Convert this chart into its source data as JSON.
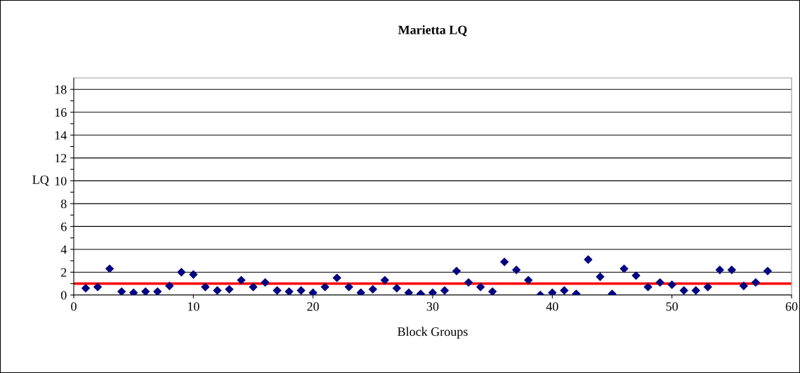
{
  "chart_data": {
    "type": "scatter",
    "title": "Marietta LQ",
    "xlabel": "Block Groups",
    "ylabel": "LQ",
    "x": [
      1,
      2,
      3,
      4,
      5,
      6,
      7,
      8,
      9,
      10,
      11,
      12,
      13,
      14,
      15,
      16,
      17,
      18,
      19,
      20,
      21,
      22,
      23,
      24,
      25,
      26,
      27,
      28,
      29,
      30,
      31,
      32,
      33,
      34,
      35,
      36,
      37,
      38,
      39,
      40,
      41,
      42,
      43,
      44,
      45,
      46,
      47,
      48,
      49,
      50,
      51,
      52,
      53,
      54,
      55,
      56,
      57,
      58
    ],
    "series": [
      {
        "color": "#000080",
        "values": [
          0.6,
          0.7,
          2.3,
          0.3,
          0.2,
          0.3,
          0.3,
          0.8,
          2.0,
          1.8,
          0.7,
          0.4,
          0.5,
          1.3,
          0.7,
          1.1,
          0.4,
          0.3,
          0.4,
          0.2,
          0.7,
          1.5,
          0.7,
          0.2,
          0.5,
          1.3,
          0.6,
          0.2,
          0.1,
          0.2,
          0.4,
          2.1,
          1.1,
          0.7,
          0.3,
          2.9,
          2.2,
          1.3,
          0.0,
          0.2,
          0.4,
          0.1,
          3.1,
          1.6,
          0.1,
          2.3,
          1.7,
          0.7,
          1.1,
          0.9,
          0.4,
          0.4,
          0.7,
          2.2,
          2.2,
          0.8,
          1.1,
          2.1
        ]
      }
    ],
    "marker": "diamond",
    "xlim": [
      0,
      60
    ],
    "xticks": [
      0,
      10,
      20,
      30,
      40,
      50,
      60
    ],
    "ylim": [
      0,
      19
    ],
    "yticks": [
      0,
      {
        "value": 1,
        "label": null
      },
      2,
      {
        "value": 3,
        "label": null
      },
      4,
      {
        "value": 5,
        "label": null
      },
      6,
      {
        "value": 7,
        "label": null
      },
      8,
      {
        "value": 9,
        "label": null
      },
      10,
      {
        "value": 11,
        "label": null
      },
      12,
      {
        "value": 13,
        "label": null
      },
      14,
      {
        "value": 15,
        "label": null
      },
      16,
      {
        "value": 17,
        "label": null
      },
      18
    ],
    "grid": "y",
    "legend": false,
    "ref_lines": [
      {
        "axis": "y",
        "value": 1,
        "color": "#ff0000"
      }
    ]
  }
}
